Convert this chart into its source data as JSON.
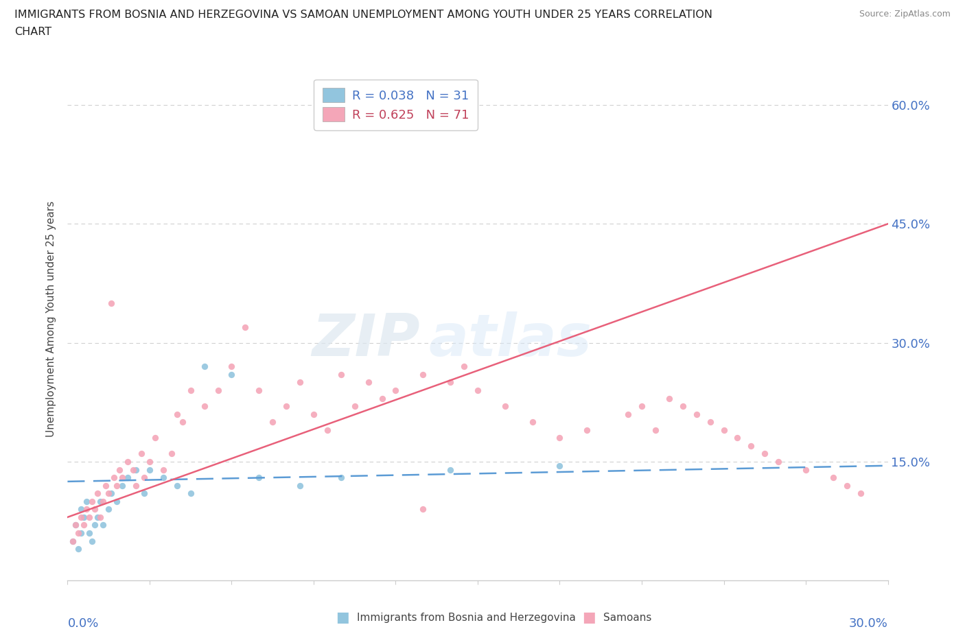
{
  "title_line1": "IMMIGRANTS FROM BOSNIA AND HERZEGOVINA VS SAMOAN UNEMPLOYMENT AMONG YOUTH UNDER 25 YEARS CORRELATION",
  "title_line2": "CHART",
  "source": "Source: ZipAtlas.com",
  "ylabel": "Unemployment Among Youth under 25 years",
  "xmin": 0.0,
  "xmax": 30.0,
  "ymin": 0.0,
  "ymax": 66.0,
  "ytick_values": [
    15.0,
    30.0,
    45.0,
    60.0
  ],
  "legend_r1": "R = 0.038   N = 31",
  "legend_r2": "R = 0.625   N = 71",
  "blue_color": "#92c5de",
  "pink_color": "#f4a6b8",
  "blue_line_color": "#5b9bd5",
  "pink_line_color": "#e8607a",
  "label_color": "#4472c4",
  "legend_text_blue": "#4472c4",
  "legend_text_pink": "#c0415a",
  "blue_x": [
    0.2,
    0.3,
    0.4,
    0.5,
    0.5,
    0.6,
    0.7,
    0.8,
    0.9,
    1.0,
    1.1,
    1.2,
    1.3,
    1.5,
    1.6,
    1.8,
    2.0,
    2.2,
    2.5,
    2.8,
    3.0,
    3.5,
    4.0,
    4.5,
    5.0,
    6.0,
    7.0,
    8.5,
    10.0,
    14.0,
    18.0
  ],
  "blue_y": [
    5.0,
    7.0,
    4.0,
    6.0,
    9.0,
    8.0,
    10.0,
    6.0,
    5.0,
    7.0,
    8.0,
    10.0,
    7.0,
    9.0,
    11.0,
    10.0,
    12.0,
    13.0,
    14.0,
    11.0,
    14.0,
    13.0,
    12.0,
    11.0,
    27.0,
    26.0,
    13.0,
    12.0,
    13.0,
    14.0,
    14.5
  ],
  "pink_x": [
    0.2,
    0.3,
    0.4,
    0.5,
    0.6,
    0.7,
    0.8,
    0.9,
    1.0,
    1.1,
    1.2,
    1.3,
    1.4,
    1.5,
    1.6,
    1.7,
    1.8,
    1.9,
    2.0,
    2.2,
    2.4,
    2.5,
    2.7,
    2.8,
    3.0,
    3.2,
    3.5,
    3.8,
    4.0,
    4.2,
    4.5,
    5.0,
    5.5,
    6.0,
    6.5,
    7.0,
    7.5,
    8.0,
    8.5,
    9.0,
    9.5,
    10.0,
    10.5,
    11.0,
    11.5,
    12.0,
    13.0,
    14.0,
    14.5,
    15.0,
    16.0,
    17.0,
    18.0,
    19.0,
    20.5,
    21.0,
    21.5,
    22.0,
    22.5,
    23.0,
    23.5,
    24.0,
    24.5,
    25.0,
    25.5,
    26.0,
    27.0,
    28.0,
    28.5,
    29.0,
    13.0
  ],
  "pink_y": [
    5.0,
    7.0,
    6.0,
    8.0,
    7.0,
    9.0,
    8.0,
    10.0,
    9.0,
    11.0,
    8.0,
    10.0,
    12.0,
    11.0,
    35.0,
    13.0,
    12.0,
    14.0,
    13.0,
    15.0,
    14.0,
    12.0,
    16.0,
    13.0,
    15.0,
    18.0,
    14.0,
    16.0,
    21.0,
    20.0,
    24.0,
    22.0,
    24.0,
    27.0,
    32.0,
    24.0,
    20.0,
    22.0,
    25.0,
    21.0,
    19.0,
    26.0,
    22.0,
    25.0,
    23.0,
    24.0,
    26.0,
    25.0,
    27.0,
    24.0,
    22.0,
    20.0,
    18.0,
    19.0,
    21.0,
    22.0,
    19.0,
    23.0,
    22.0,
    21.0,
    20.0,
    19.0,
    18.0,
    17.0,
    16.0,
    15.0,
    14.0,
    13.0,
    12.0,
    11.0,
    9.0
  ],
  "blue_trend_x": [
    0.0,
    30.0
  ],
  "blue_trend_y": [
    12.5,
    14.5
  ],
  "pink_trend_x": [
    0.0,
    30.0
  ],
  "pink_trend_y": [
    8.0,
    45.0
  ],
  "grid_color": "#d0d0d0",
  "spine_color": "#cccccc",
  "watermark_zip": "ZIP",
  "watermark_atlas": "atlas"
}
